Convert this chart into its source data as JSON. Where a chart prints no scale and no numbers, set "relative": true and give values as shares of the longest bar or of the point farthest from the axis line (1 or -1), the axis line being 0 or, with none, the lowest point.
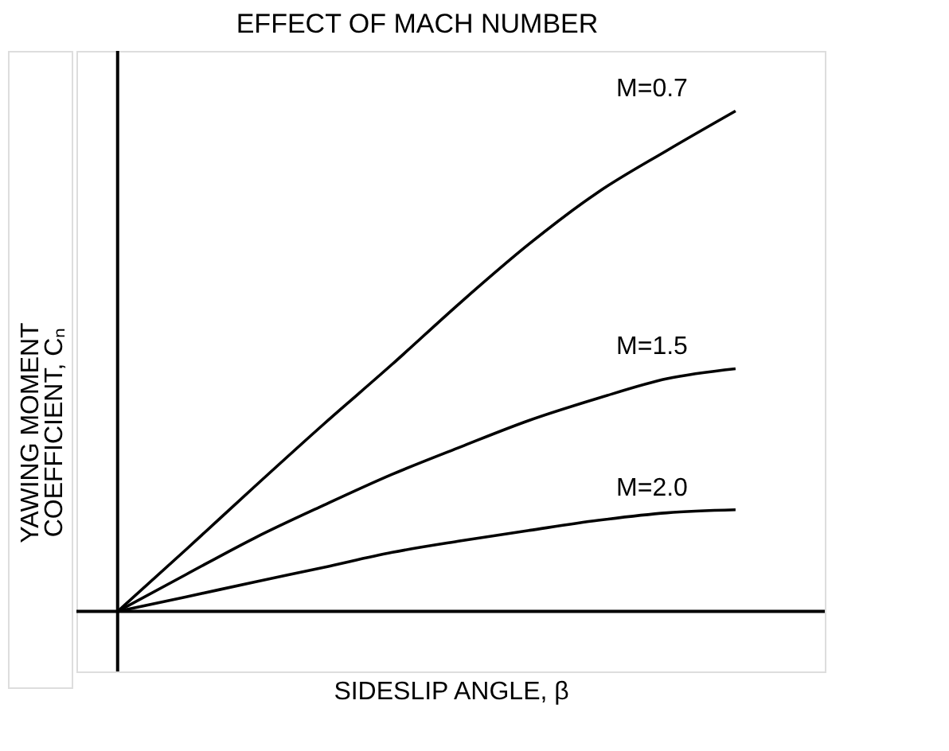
{
  "chart_data": {
    "type": "line",
    "title": "EFFECT OF MACH NUMBER",
    "xlabel": "SIDESLIP ANGLE, β",
    "ylabel": "YAWING MOMENT COEFFICIENT, Cₙ",
    "relative": true,
    "categories": [
      null,
      null,
      null,
      null,
      null,
      null,
      null,
      null,
      null,
      null
    ],
    "series": [
      {
        "name": "M=0.7",
        "color": "#000000",
        "values": [
          0,
          0.124,
          0.25,
          0.374,
          0.494,
          0.618,
          0.735,
          0.838,
          0.921,
          1.0
        ]
      },
      {
        "name": "M=1.5",
        "color": "#000000",
        "values": [
          0,
          0.074,
          0.147,
          0.212,
          0.274,
          0.329,
          0.382,
          0.426,
          0.465,
          0.485
        ]
      },
      {
        "name": "M=2.0",
        "color": "#000000",
        "values": [
          0,
          0.029,
          0.059,
          0.088,
          0.118,
          0.141,
          0.162,
          0.182,
          0.197,
          0.203
        ]
      }
    ],
    "grid": false,
    "marker": "none",
    "line_style": "solid"
  }
}
